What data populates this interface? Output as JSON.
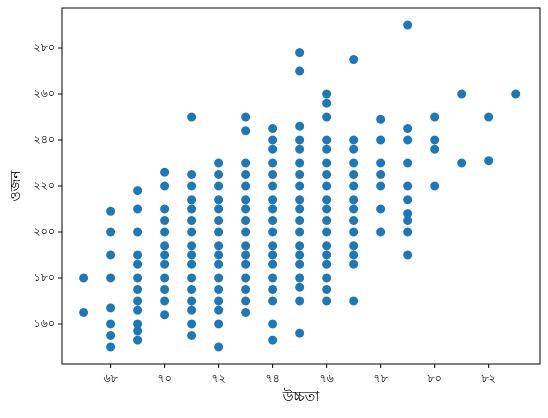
{
  "chart_data": {
    "type": "scatter",
    "x_label": "উচ্চতা",
    "y_label": "ওজন",
    "color": "#1f77b4",
    "xlim": [
      66.2,
      83.9
    ],
    "ylim": [
      142.6,
      297.4
    ],
    "xticks": [
      {
        "value": 68,
        "label": "৬৮"
      },
      {
        "value": 70,
        "label": "৭০"
      },
      {
        "value": 72,
        "label": "৭২"
      },
      {
        "value": 74,
        "label": "৭৪"
      },
      {
        "value": 76,
        "label": "৭৬"
      },
      {
        "value": 78,
        "label": "৭৮"
      },
      {
        "value": 80,
        "label": "৮০"
      },
      {
        "value": 82,
        "label": "৮২"
      }
    ],
    "yticks": [
      {
        "value": 160,
        "label": "১৬০"
      },
      {
        "value": 180,
        "label": "১৮০"
      },
      {
        "value": 200,
        "label": "২০০"
      },
      {
        "value": 220,
        "label": "২২০"
      },
      {
        "value": 240,
        "label": "২৪০"
      },
      {
        "value": 260,
        "label": "২৬০"
      },
      {
        "value": 280,
        "label": "২৮০"
      }
    ],
    "x": [
      67,
      67,
      68,
      68,
      68,
      68,
      68,
      68,
      68,
      68,
      69,
      69,
      69,
      69,
      69,
      69,
      69,
      69,
      69,
      69,
      69,
      69,
      70,
      70,
      70,
      70,
      70,
      70,
      70,
      70,
      70,
      70,
      70,
      70,
      71,
      71,
      71,
      71,
      71,
      71,
      71,
      71,
      71,
      71,
      71,
      71,
      71,
      71,
      71,
      71,
      72,
      72,
      72,
      72,
      72,
      72,
      72,
      72,
      72,
      72,
      72,
      72,
      72,
      72,
      72,
      72,
      73,
      73,
      73,
      73,
      73,
      73,
      73,
      73,
      73,
      73,
      73,
      73,
      73,
      73,
      73,
      73,
      74,
      74,
      74,
      74,
      74,
      74,
      74,
      74,
      74,
      74,
      74,
      74,
      74,
      74,
      74,
      74,
      74,
      74,
      75,
      75,
      75,
      75,
      75,
      75,
      75,
      75,
      75,
      75,
      75,
      75,
      75,
      75,
      75,
      75,
      75,
      75,
      75,
      76,
      76,
      76,
      76,
      76,
      76,
      76,
      76,
      76,
      76,
      76,
      76,
      76,
      76,
      76,
      76,
      76,
      76,
      77,
      77,
      77,
      77,
      77,
      77,
      77,
      77,
      77,
      77,
      77,
      77,
      77,
      77,
      78,
      78,
      78,
      78,
      78,
      78,
      78,
      79,
      79,
      79,
      79,
      79,
      79,
      79,
      79,
      79,
      79,
      80,
      80,
      80,
      80,
      81,
      81,
      82,
      82,
      83
    ],
    "values": [
      180,
      165,
      209,
      200,
      190,
      180,
      167,
      160,
      155,
      150,
      218,
      210,
      200,
      190,
      186,
      180,
      175,
      170,
      166,
      160,
      157,
      153,
      226,
      220,
      210,
      205,
      200,
      194,
      190,
      186,
      180,
      175,
      170,
      164,
      250,
      225,
      220,
      214,
      210,
      205,
      200,
      194,
      190,
      186,
      180,
      175,
      170,
      166,
      160,
      155,
      230,
      225,
      220,
      214,
      210,
      205,
      200,
      194,
      190,
      186,
      180,
      175,
      170,
      166,
      160,
      150,
      250,
      244,
      230,
      225,
      220,
      214,
      210,
      205,
      200,
      194,
      190,
      186,
      180,
      175,
      170,
      165,
      245,
      240,
      236,
      230,
      225,
      220,
      214,
      210,
      205,
      200,
      194,
      190,
      186,
      180,
      175,
      170,
      160,
      153,
      278,
      270,
      246,
      240,
      236,
      230,
      225,
      220,
      214,
      210,
      205,
      200,
      194,
      190,
      186,
      180,
      176,
      170,
      156,
      260,
      256,
      250,
      240,
      236,
      230,
      225,
      220,
      214,
      210,
      205,
      200,
      194,
      190,
      186,
      180,
      175,
      170,
      275,
      240,
      236,
      230,
      225,
      220,
      214,
      210,
      205,
      200,
      194,
      190,
      186,
      170,
      249,
      240,
      230,
      225,
      220,
      210,
      200,
      290,
      245,
      240,
      230,
      220,
      214,
      208,
      205,
      200,
      190,
      250,
      240,
      236,
      220,
      260,
      230,
      250,
      231,
      260
    ]
  }
}
